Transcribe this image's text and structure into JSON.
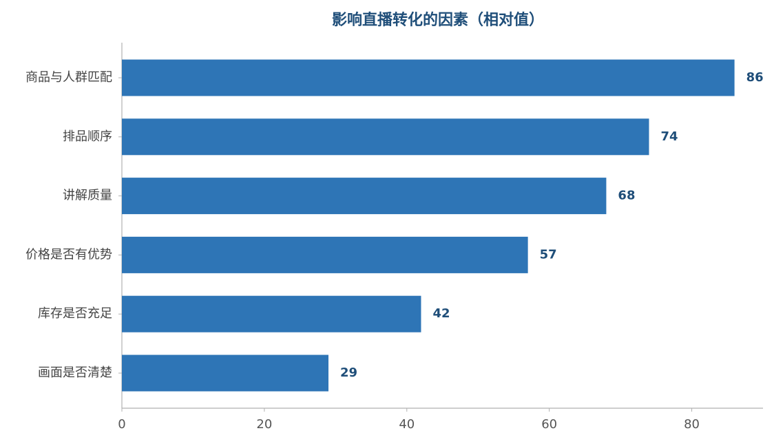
{
  "chart_data": {
    "type": "bar",
    "orientation": "horizontal",
    "title": "影响直播转化的因素（相对值）",
    "categories": [
      "商品与人群匹配",
      "排品顺序",
      "讲解质量",
      "价格是否有优势",
      "库存是否充足",
      "画面是否清楚"
    ],
    "values": [
      86,
      74,
      68,
      57,
      42,
      29
    ],
    "color": "#2e75b6",
    "xlim": [
      0,
      90
    ],
    "xticks": [
      0,
      20,
      40,
      60,
      80
    ],
    "grid": false
  }
}
